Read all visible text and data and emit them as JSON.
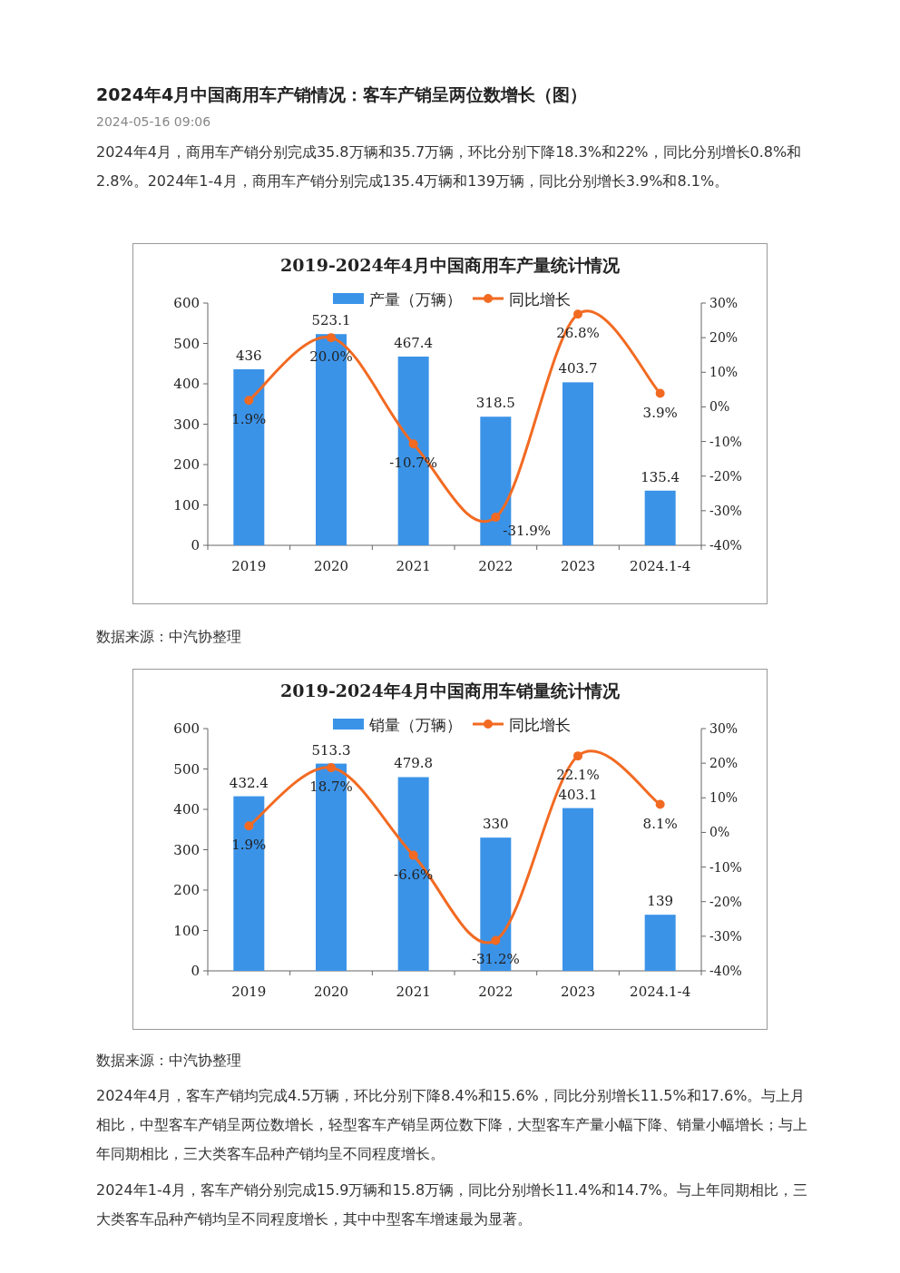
{
  "chart_data": [
    {
      "type": "bar",
      "title": "2019-2024年4月中国商用车产量统计情况",
      "categories": [
        "2019",
        "2020",
        "2021",
        "2022",
        "2023",
        "2024.1-4"
      ],
      "series": [
        {
          "name": "产量（万辆）",
          "color": "#3b93e8",
          "values": [
            436,
            523.1,
            467.4,
            318.5,
            403.7,
            135.4
          ],
          "value_labels": [
            "436",
            "523.1",
            "467.4",
            "318.5",
            "403.7",
            "135.4"
          ]
        },
        {
          "name": "同比增长",
          "type": "line",
          "axis": "y2",
          "marker": "circle",
          "color": "#f26a22",
          "values": [
            1.9,
            20.0,
            -10.7,
            -31.9,
            26.8,
            3.9
          ],
          "value_labels": [
            "1.9%",
            "20.0%",
            "-10.7%",
            "-31.9%",
            "26.8%",
            "3.9%"
          ]
        }
      ],
      "ylim": [
        0,
        600
      ],
      "yticks": [
        0,
        100,
        200,
        300,
        400,
        500,
        600
      ],
      "y2lim": [
        -40,
        30
      ],
      "y2ticks": [
        {
          "value": -40,
          "label": "-40%"
        },
        {
          "value": -30,
          "label": "-30%"
        },
        {
          "value": -20,
          "label": "-20%"
        },
        {
          "value": -10,
          "label": "-10%"
        },
        {
          "value": 0,
          "label": "0%"
        },
        {
          "value": 10,
          "label": "10%"
        },
        {
          "value": 20,
          "label": "20%"
        },
        {
          "value": 30,
          "label": "30%"
        }
      ],
      "legend": "top",
      "annotations": [
        "2024年4月中国商用车产销情况：客车产销呈两位数增长（图）",
        "2024-05-16 09:06",
        "2024年4月，商用车产销分别完成35.8万辆和35.7万辆，环比分别下降18.3%和22%，同比分别增长0.8%和2.8%。2024年1-4月，商用车产销分别完成135.4万辆和139万辆，同比分别增长3.9%和8.1%。",
        "数据来源：中汽协整理"
      ]
    },
    {
      "type": "bar",
      "title": "2019-2024年4月中国商用车销量统计情况",
      "categories": [
        "2019",
        "2020",
        "2021",
        "2022",
        "2023",
        "2024.1-4"
      ],
      "series": [
        {
          "name": "销量（万辆）",
          "color": "#3b93e8",
          "values": [
            432.4,
            513.3,
            479.8,
            330,
            403.1,
            139
          ],
          "value_labels": [
            "432.4",
            "513.3",
            "479.8",
            "330",
            "403.1",
            "139"
          ]
        },
        {
          "name": "同比增长",
          "type": "line",
          "axis": "y2",
          "marker": "circle",
          "color": "#f26a22",
          "values": [
            1.9,
            18.7,
            -6.6,
            -31.2,
            22.1,
            8.1
          ],
          "value_labels": [
            "1.9%",
            "18.7%",
            "-6.6%",
            "-31.2%",
            "22.1%",
            "8.1%"
          ]
        }
      ],
      "ylim": [
        0,
        600
      ],
      "yticks": [
        0,
        100,
        200,
        300,
        400,
        500,
        600
      ],
      "y2lim": [
        -40,
        30
      ],
      "y2ticks": [
        {
          "value": -40,
          "label": "-40%"
        },
        {
          "value": -30,
          "label": "-30%"
        },
        {
          "value": -20,
          "label": "-20%"
        },
        {
          "value": -10,
          "label": "-10%"
        },
        {
          "value": 0,
          "label": "0%"
        },
        {
          "value": 10,
          "label": "10%"
        },
        {
          "value": 20,
          "label": "20%"
        },
        {
          "value": 30,
          "label": "30%"
        }
      ],
      "legend": "top",
      "annotations": [
        "数据来源：中汽协整理",
        "2024年4月，客车产销均完成4.5万辆，环比分别下降8.4%和15.6%，同比分别增长11.5%和17.6%。与上月相比，中型客车产销呈两位数增长，轻型客车产销呈两位数下降，大型客车产量小幅下降、销量小幅增长；与上年同期相比，三大类客车品种产销均呈不同程度增长。",
        "2024年1-4月，客车产销分别完成15.9万辆和15.8万辆，同比分别增长11.4%和14.7%。与上年同期相比，三大类客车品种产销均呈不同程度增长，其中中型客车增速最为显著。"
      ]
    }
  ]
}
